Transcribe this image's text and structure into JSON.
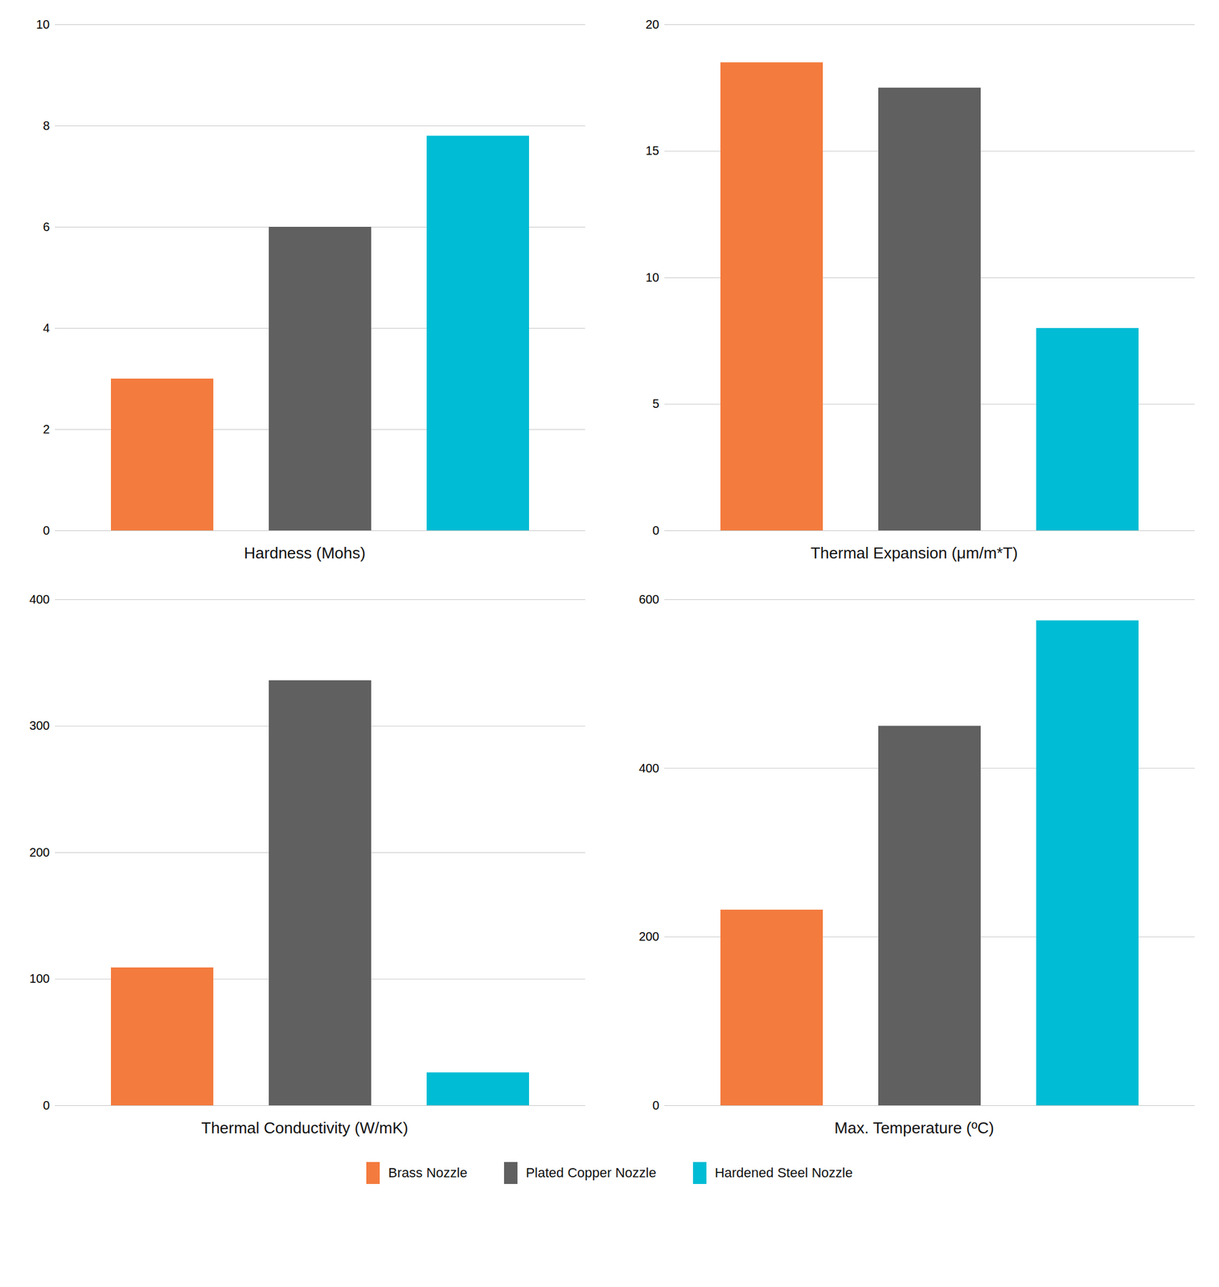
{
  "chart_data": [
    {
      "type": "bar",
      "xlabel": "Hardness (Mohs)",
      "categories": [
        "Brass Nozzle",
        "Plated Copper Nozzle",
        "Hardened Steel Nozzle"
      ],
      "values": [
        3.0,
        6.0,
        7.8
      ],
      "colors": [
        "#F47B3E",
        "#606060",
        "#00BCD4"
      ],
      "ylim": [
        0,
        10
      ],
      "yticks": [
        0,
        2,
        4,
        6,
        8,
        10
      ],
      "grid": true,
      "tick_labels": "y",
      "legend": "bottom"
    },
    {
      "type": "bar",
      "xlabel": "Thermal Expansion (μm/m*T)",
      "categories": [
        "Brass Nozzle",
        "Plated Copper Nozzle",
        "Hardened Steel Nozzle"
      ],
      "values": [
        18.5,
        17.5,
        8.0
      ],
      "colors": [
        "#F47B3E",
        "#606060",
        "#00BCD4"
      ],
      "ylim": [
        0,
        20
      ],
      "yticks": [
        0,
        5,
        10,
        15,
        20
      ],
      "grid": true,
      "tick_labels": "y",
      "legend": "bottom"
    },
    {
      "type": "bar",
      "xlabel": "Thermal Conductivity (W/mK)",
      "categories": [
        "Brass Nozzle",
        "Plated Copper Nozzle",
        "Hardened Steel Nozzle"
      ],
      "values": [
        109.0,
        336.0,
        26.0
      ],
      "colors": [
        "#F47B3E",
        "#606060",
        "#00BCD4"
      ],
      "ylim": [
        0,
        400
      ],
      "yticks": [
        0,
        100,
        200,
        300,
        400
      ],
      "grid": true,
      "tick_labels": "y",
      "legend": "bottom"
    },
    {
      "type": "bar",
      "xlabel": "Max. Temperature (ºC)",
      "categories": [
        "Brass Nozzle",
        "Plated Copper Nozzle",
        "Hardened Steel Nozzle"
      ],
      "values": [
        232.0,
        450.0,
        575.0
      ],
      "colors": [
        "#F47B3E",
        "#606060",
        "#00BCD4"
      ],
      "ylim": [
        0,
        600
      ],
      "yticks": [
        0,
        200,
        400,
        600
      ],
      "grid": true,
      "tick_labels": "y",
      "legend": "bottom"
    }
  ]
}
